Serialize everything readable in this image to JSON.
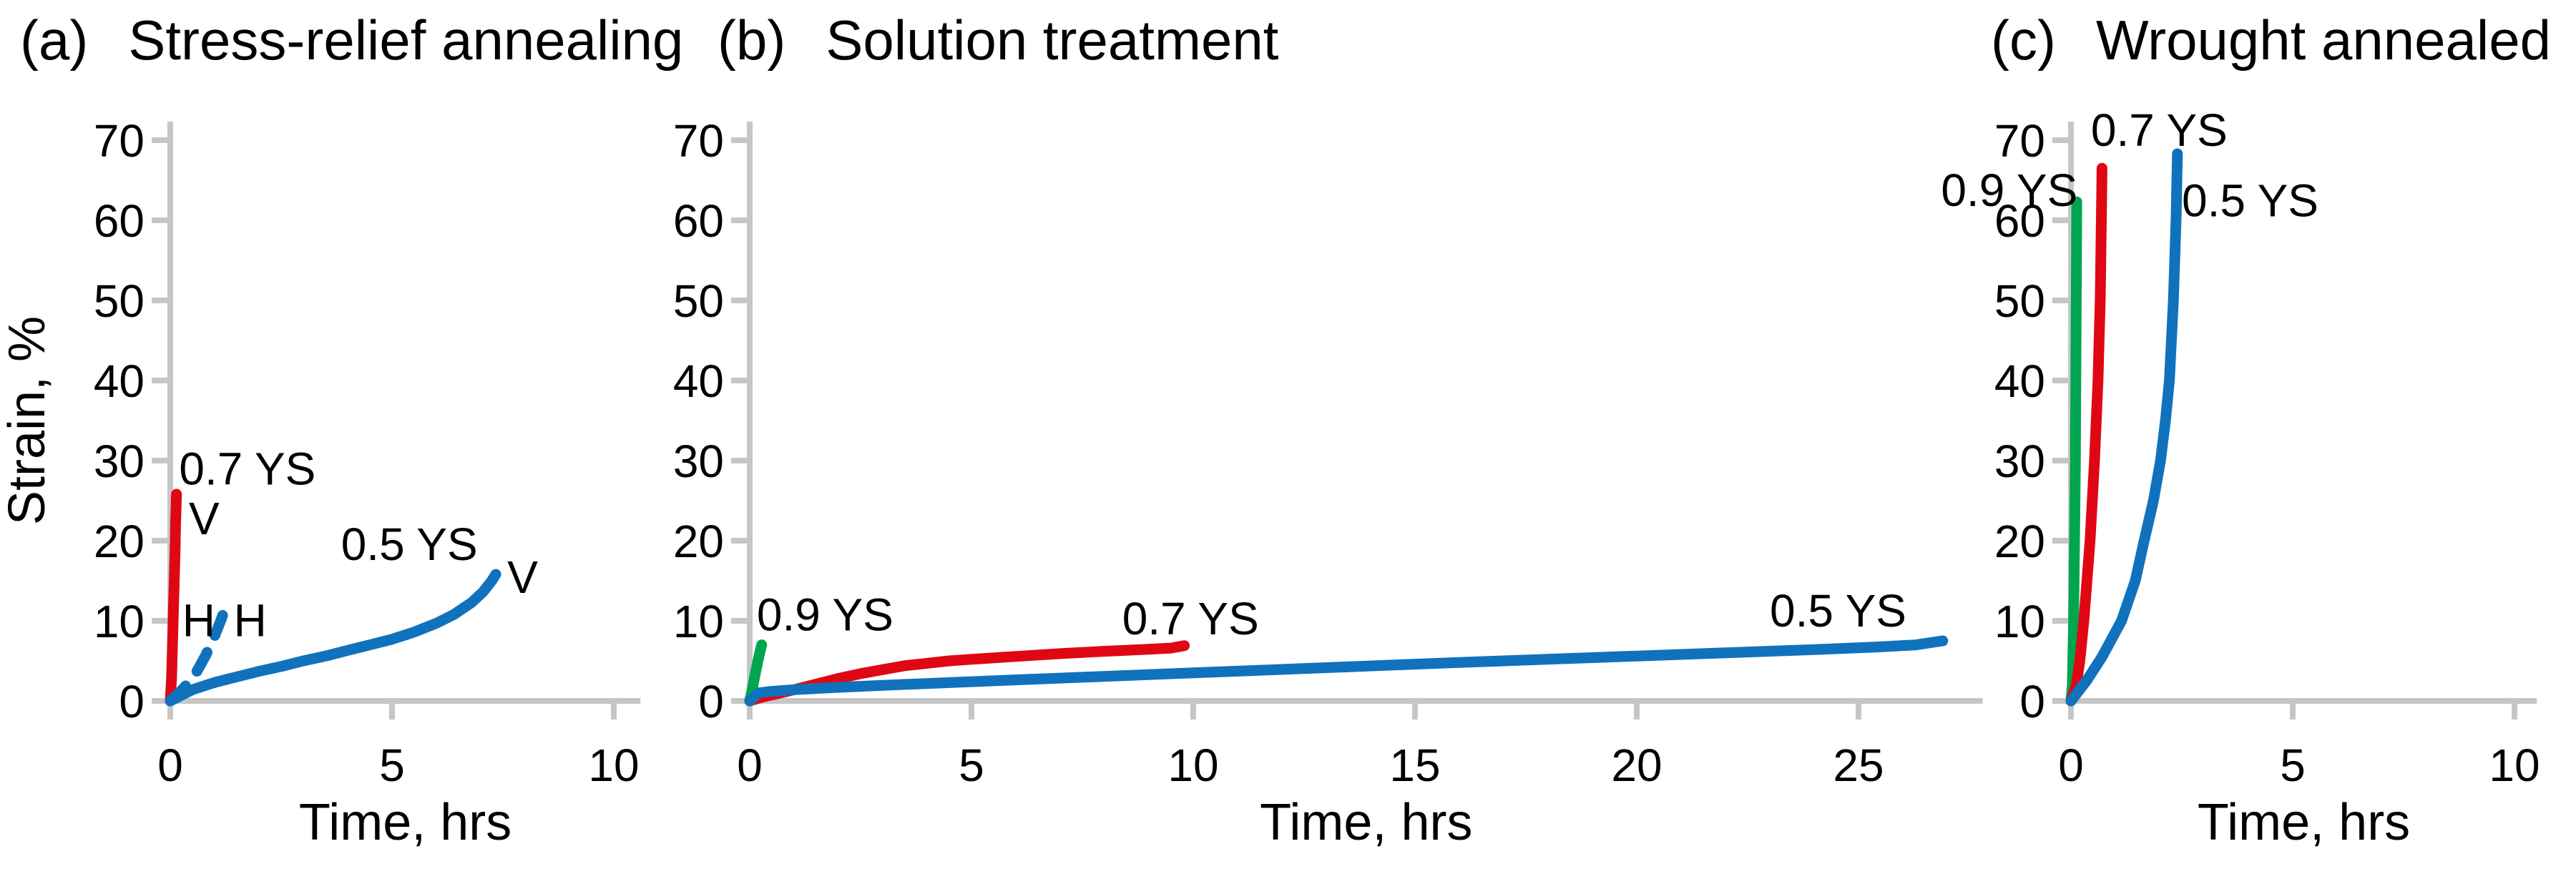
{
  "colors": {
    "red": "#df0713",
    "blue": "#1072bc",
    "green": "#00a550",
    "axis": "#c6c6c6",
    "text": "#000000",
    "background": "#ffffff"
  },
  "chart_data": [
    {
      "type": "line",
      "panel_label": "(a)",
      "title": "Stress-relief annealing",
      "xlabel": "Time, hrs",
      "ylabel": "Strain, %",
      "xlim": [
        0,
        10.6
      ],
      "ylim": [
        0,
        70
      ],
      "xticks": [
        0,
        5,
        10
      ],
      "yticks": [
        0,
        10,
        20,
        30,
        40,
        50,
        60,
        70
      ],
      "grid": false,
      "legend": "none",
      "series": [
        {
          "name": "0.7 YS",
          "color": "red",
          "style": "solid",
          "points": [
            [
              0,
              0
            ],
            [
              0.03,
              3
            ],
            [
              0.05,
              7
            ],
            [
              0.07,
              11
            ],
            [
              0.09,
              15
            ],
            [
              0.11,
              19
            ],
            [
              0.12,
              22
            ],
            [
              0.14,
              25.8
            ]
          ]
        },
        {
          "name": "H",
          "color": "blue",
          "style": "dashed",
          "points": [
            [
              0,
              0
            ],
            [
              0.2,
              1.0
            ],
            [
              0.4,
              2.2
            ],
            [
              0.6,
              3.7
            ],
            [
              0.8,
              5.7
            ],
            [
              1.0,
              8.1
            ],
            [
              1.15,
              10.2
            ],
            [
              1.28,
              12.3
            ]
          ]
        },
        {
          "name": "0.5 YS",
          "color": "blue",
          "style": "solid",
          "points": [
            [
              0,
              0
            ],
            [
              0.5,
              1.4
            ],
            [
              1,
              2.3
            ],
            [
              1.5,
              3.0
            ],
            [
              2,
              3.7
            ],
            [
              2.5,
              4.3
            ],
            [
              3,
              5.0
            ],
            [
              3.5,
              5.6
            ],
            [
              4,
              6.3
            ],
            [
              4.5,
              7.0
            ],
            [
              5,
              7.7
            ],
            [
              5.5,
              8.6
            ],
            [
              6,
              9.7
            ],
            [
              6.4,
              10.8
            ],
            [
              6.8,
              12.3
            ],
            [
              7.05,
              13.6
            ],
            [
              7.25,
              15.0
            ],
            [
              7.34,
              15.8
            ]
          ]
        }
      ],
      "annotations": [
        {
          "text": "0.7 YS",
          "x": 0.2,
          "y": 27.0,
          "anchor": "start"
        },
        {
          "text": "V",
          "x": 0.42,
          "y": 20.8,
          "anchor": "start"
        },
        {
          "text": "H",
          "x": 0.27,
          "y": 8.1,
          "anchor": "start"
        },
        {
          "text": "H",
          "x": 1.43,
          "y": 8.1,
          "anchor": "start"
        },
        {
          "text": "0.5 YS",
          "x": 3.85,
          "y": 17.6,
          "anchor": "start"
        },
        {
          "text": "V",
          "x": 7.6,
          "y": 13.5,
          "anchor": "start"
        }
      ]
    },
    {
      "type": "line",
      "panel_label": "(b)",
      "title": "Solution treatment",
      "xlabel": "Time, hrs",
      "ylabel": "",
      "xlim": [
        0,
        27.8
      ],
      "ylim": [
        0,
        70
      ],
      "xticks": [
        0,
        5,
        10,
        15,
        20,
        25
      ],
      "yticks": [
        0,
        10,
        20,
        30,
        40,
        50,
        60,
        70
      ],
      "grid": false,
      "legend": "none",
      "series": [
        {
          "name": "0.9 YS",
          "color": "green",
          "style": "solid",
          "points": [
            [
              0,
              0
            ],
            [
              0.07,
              1.8
            ],
            [
              0.14,
              3.8
            ],
            [
              0.21,
              5.6
            ],
            [
              0.27,
              7.0
            ]
          ]
        },
        {
          "name": "0.7 YS",
          "color": "red",
          "style": "solid",
          "points": [
            [
              0,
              0
            ],
            [
              0.3,
              0.5
            ],
            [
              0.7,
              1.0
            ],
            [
              1,
              1.4
            ],
            [
              1.5,
              2.1
            ],
            [
              2,
              2.8
            ],
            [
              2.5,
              3.4
            ],
            [
              3,
              3.9
            ],
            [
              3.5,
              4.4
            ],
            [
              4,
              4.7
            ],
            [
              4.5,
              5.0
            ],
            [
              5,
              5.2
            ],
            [
              6,
              5.55
            ],
            [
              7,
              5.9
            ],
            [
              8,
              6.2
            ],
            [
              9,
              6.45
            ],
            [
              9.5,
              6.6
            ],
            [
              9.8,
              6.9
            ]
          ]
        },
        {
          "name": "0.5 YS",
          "color": "blue",
          "style": "solid",
          "points": [
            [
              0,
              0
            ],
            [
              0.2,
              1.0
            ],
            [
              0.5,
              1.2
            ],
            [
              1,
              1.4
            ],
            [
              2,
              1.7
            ],
            [
              3,
              1.95
            ],
            [
              5,
              2.4
            ],
            [
              7,
              2.85
            ],
            [
              10,
              3.5
            ],
            [
              13,
              4.15
            ],
            [
              16,
              4.8
            ],
            [
              19,
              5.4
            ],
            [
              22,
              6.0
            ],
            [
              24,
              6.4
            ],
            [
              25.5,
              6.75
            ],
            [
              26.3,
              7.0
            ],
            [
              26.9,
              7.5
            ]
          ]
        }
      ],
      "annotations": [
        {
          "text": "0.9 YS",
          "x": 0.16,
          "y": 8.8,
          "anchor": "start"
        },
        {
          "text": "0.7 YS",
          "x": 8.4,
          "y": 8.3,
          "anchor": "start"
        },
        {
          "text": "0.5 YS",
          "x": 23.0,
          "y": 9.3,
          "anchor": "start"
        }
      ]
    },
    {
      "type": "line",
      "panel_label": "(c)",
      "title": "Wrought annealed",
      "xlabel": "Time, hrs",
      "ylabel": "",
      "xlim": [
        0,
        10.5
      ],
      "ylim": [
        0,
        70
      ],
      "xticks": [
        0,
        5,
        10
      ],
      "yticks": [
        0,
        10,
        20,
        30,
        40,
        50,
        60,
        70
      ],
      "grid": false,
      "legend": "none",
      "series": [
        {
          "name": "0.9 YS",
          "color": "green",
          "style": "solid",
          "points": [
            [
              0,
              0
            ],
            [
              0.03,
              2
            ],
            [
              0.06,
              10
            ],
            [
              0.08,
              20
            ],
            [
              0.1,
              30
            ],
            [
              0.11,
              40
            ],
            [
              0.12,
              50
            ],
            [
              0.13,
              62.3
            ]
          ]
        },
        {
          "name": "0.7 YS",
          "color": "red",
          "style": "solid",
          "points": [
            [
              0,
              0
            ],
            [
              0.12,
              2
            ],
            [
              0.2,
              5
            ],
            [
              0.29,
              10
            ],
            [
              0.43,
              20
            ],
            [
              0.53,
              30
            ],
            [
              0.61,
              40
            ],
            [
              0.66,
              50
            ],
            [
              0.685,
              60
            ],
            [
              0.7,
              66.5
            ]
          ]
        },
        {
          "name": "0.5 YS",
          "color": "blue",
          "style": "solid",
          "points": [
            [
              0,
              0
            ],
            [
              0.35,
              2.5
            ],
            [
              0.7,
              5.5
            ],
            [
              1.14,
              10
            ],
            [
              1.45,
              15
            ],
            [
              1.65,
              20
            ],
            [
              1.86,
              25
            ],
            [
              2.02,
              30
            ],
            [
              2.13,
              35
            ],
            [
              2.22,
              40
            ],
            [
              2.31,
              50
            ],
            [
              2.37,
              60
            ],
            [
              2.4,
              68.3
            ]
          ]
        }
      ],
      "annotations": [
        {
          "text": "0.9 YS",
          "x": 0.15,
          "y": 61.8,
          "anchor": "end"
        },
        {
          "text": "0.7 YS",
          "x": 0.45,
          "y": 69.3,
          "anchor": "start"
        },
        {
          "text": "0.5 YS",
          "x": 2.5,
          "y": 60.5,
          "anchor": "start"
        }
      ]
    }
  ]
}
